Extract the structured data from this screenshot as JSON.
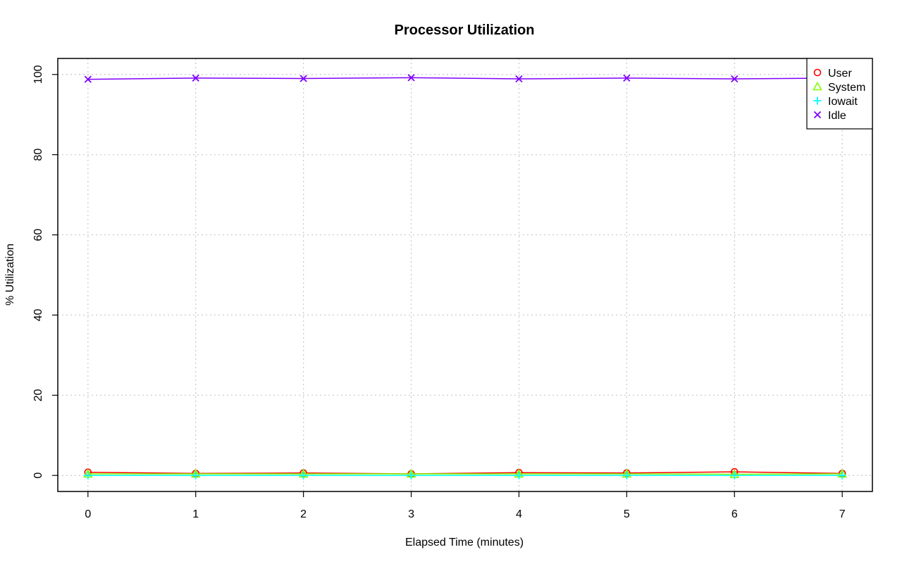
{
  "chart_data": {
    "type": "line",
    "title": "Processor Utilization",
    "xlabel": "Elapsed Time (minutes)",
    "ylabel": "% Utilization",
    "x": [
      0,
      1,
      2,
      3,
      4,
      5,
      6,
      7
    ],
    "xlim": [
      -0.28,
      7.28
    ],
    "ylim": [
      -4,
      104
    ],
    "x_ticks": [
      0,
      1,
      2,
      3,
      4,
      5,
      6,
      7
    ],
    "x_tick_labels": [
      "0",
      "1",
      "2",
      "3",
      "4",
      "5",
      "6",
      "7"
    ],
    "y_ticks": [
      0,
      20,
      40,
      60,
      80,
      100
    ],
    "y_tick_labels": [
      "0",
      "20",
      "40",
      "60",
      "80",
      "100"
    ],
    "grid": true,
    "legend_position": "top-right",
    "series": [
      {
        "name": "User",
        "marker": "circle",
        "color": "#ff0000",
        "values": [
          0.8,
          0.5,
          0.6,
          0.4,
          0.7,
          0.6,
          0.9,
          0.5
        ]
      },
      {
        "name": "System",
        "marker": "triangle",
        "color": "#80ff00",
        "values": [
          0.4,
          0.4,
          0.4,
          0.4,
          0.4,
          0.4,
          0.3,
          0.4
        ]
      },
      {
        "name": "Iowait",
        "marker": "plus",
        "color": "#00ffff",
        "values": [
          0.0,
          0.0,
          0.0,
          0.0,
          0.0,
          0.0,
          0.0,
          0.0
        ]
      },
      {
        "name": "Idle",
        "marker": "cross",
        "color": "#8000ff",
        "values": [
          98.8,
          99.1,
          99.0,
          99.2,
          98.9,
          99.1,
          98.9,
          99.1
        ]
      }
    ]
  }
}
